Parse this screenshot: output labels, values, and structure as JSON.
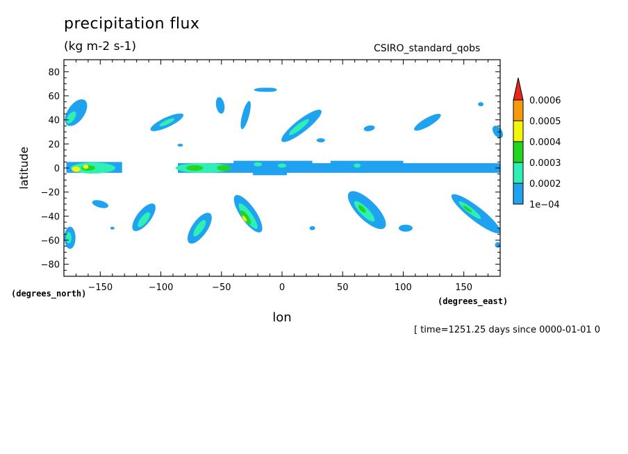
{
  "chart_data": {
    "type": "contour-map",
    "title": "precipitation flux",
    "units": "(kg m-2 s-1)",
    "dataset": "CSIRO_standard_qobs",
    "time_label": "[ time=1251.25 days since 0000-01-01 0",
    "xlabel": "lon",
    "ylabel": "latitude",
    "x_units_label": "(degrees_east)",
    "y_units_label": "(degrees_north)",
    "xlim": [
      -180,
      180
    ],
    "ylim": [
      -90,
      90
    ],
    "x_ticks": [
      -150,
      -100,
      -50,
      0,
      50,
      100,
      150
    ],
    "y_ticks": [
      80,
      60,
      40,
      20,
      0,
      -20,
      -40,
      -60,
      -80
    ],
    "colorbar": {
      "levels": [
        "1e-04",
        "0.0002",
        "0.0003",
        "0.0004",
        "0.0005",
        "0.0006"
      ],
      "colors": [
        "#1fa3f0",
        "#2ff0b4",
        "#22d61e",
        "#f5f50a",
        "#f59a0c",
        "#e8261a"
      ]
    },
    "regions": [
      {
        "label": "equatorial band west",
        "lon": [
          -177,
          -130
        ],
        "lat": [
          -4,
          6
        ],
        "max_level": 3
      },
      {
        "label": "equatorial band central",
        "lon": [
          -85,
          180
        ],
        "lat": [
          -5,
          6
        ],
        "max_level": 2
      },
      {
        "label": "NW storm band",
        "lon": [
          -180,
          -155
        ],
        "lat": [
          36,
          56
        ],
        "max_level": 1
      },
      {
        "label": "N Pacific streak",
        "lon": [
          -110,
          -78
        ],
        "lat": [
          29,
          44
        ],
        "max_level": 1
      },
      {
        "label": "N Atlantic streak",
        "lon": [
          -3,
          33
        ],
        "lat": [
          25,
          45
        ],
        "max_level": 1
      },
      {
        "label": "N Pacific east streak",
        "lon": [
          105,
          133
        ],
        "lat": [
          30,
          44
        ],
        "max_level": 0
      },
      {
        "label": "SH streak 1",
        "lon": [
          -125,
          -97
        ],
        "lat": [
          -52,
          -30
        ],
        "max_level": 1
      },
      {
        "label": "SH streak 2",
        "lon": [
          -80,
          -57
        ],
        "lat": [
          -60,
          -37
        ],
        "max_level": 1
      },
      {
        "label": "SH streak 3",
        "lon": [
          -40,
          -15
        ],
        "lat": [
          -52,
          -25
        ],
        "max_level": 3
      },
      {
        "label": "SH streak 4",
        "lon": [
          53,
          97
        ],
        "lat": [
          -48,
          -24
        ],
        "max_level": 1
      },
      {
        "label": "SH streak 5",
        "lon": [
          140,
          180
        ],
        "lat": [
          -50,
          -26
        ],
        "max_level": 1
      },
      {
        "label": "SW storm patch",
        "lon": [
          -180,
          -170
        ],
        "lat": [
          -64,
          -48
        ],
        "max_level": 1
      }
    ]
  }
}
